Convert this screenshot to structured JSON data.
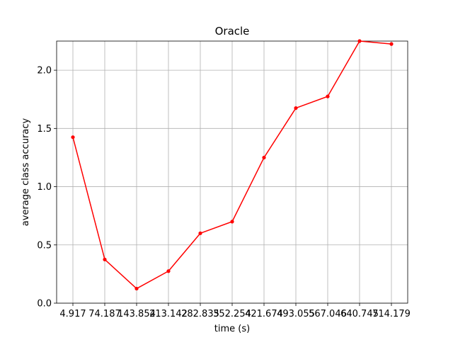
{
  "chart_data": {
    "type": "line",
    "title": "Oracle",
    "xlabel": "time (s)",
    "ylabel": "average class accuracy",
    "categories": [
      "4.917",
      "74.187",
      "143.854",
      "213.142",
      "282.835",
      "352.254",
      "421.674",
      "493.055",
      "567.046",
      "640.745",
      "714.179"
    ],
    "series": [
      {
        "values": [
          1.425,
          0.375,
          0.125,
          0.275,
          0.6,
          0.7,
          1.25,
          1.675,
          1.775,
          2.25,
          2.225
        ],
        "color": "#ff0000",
        "marker": "dot"
      }
    ],
    "ylim": [
      0,
      2.25
    ],
    "yticks": [
      "0.0",
      "0.5",
      "1.0",
      "1.5",
      "2.0"
    ],
    "grid": true
  }
}
